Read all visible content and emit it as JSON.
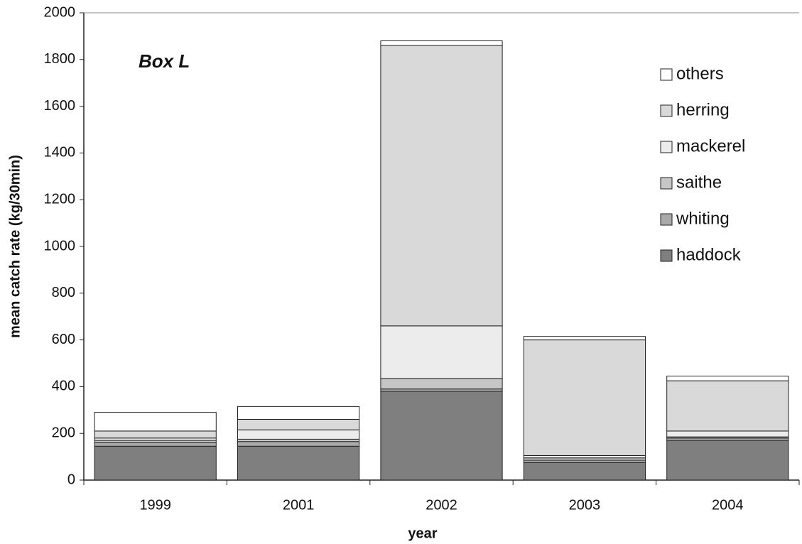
{
  "chart_data": {
    "type": "stacked_bar",
    "annotation": "Box L",
    "x_label": "year",
    "y_label": "mean catch rate (kg/30min)",
    "categories": [
      "1999",
      "2001",
      "2002",
      "2003",
      "2004"
    ],
    "series": [
      {
        "name": "haddock",
        "color": "#7f7f7f",
        "values": [
          145,
          145,
          380,
          75,
          170
        ]
      },
      {
        "name": "whiting",
        "color": "#a9a9a9",
        "values": [
          15,
          20,
          10,
          10,
          10
        ]
      },
      {
        "name": "saithe",
        "color": "#c6c6c6",
        "values": [
          10,
          10,
          45,
          10,
          5
        ]
      },
      {
        "name": "mackerel",
        "color": "#ececec",
        "values": [
          10,
          40,
          225,
          10,
          25
        ]
      },
      {
        "name": "herring",
        "color": "#d9d9d9",
        "values": [
          30,
          45,
          1200,
          495,
          215
        ]
      },
      {
        "name": "others",
        "color": "#ffffff",
        "values": [
          80,
          55,
          20,
          15,
          20
        ]
      }
    ],
    "ylim": [
      0,
      2000
    ],
    "yticks": [
      0,
      200,
      400,
      600,
      800,
      1000,
      1200,
      1400,
      1600,
      1800,
      2000
    ],
    "legend": "upper right"
  }
}
